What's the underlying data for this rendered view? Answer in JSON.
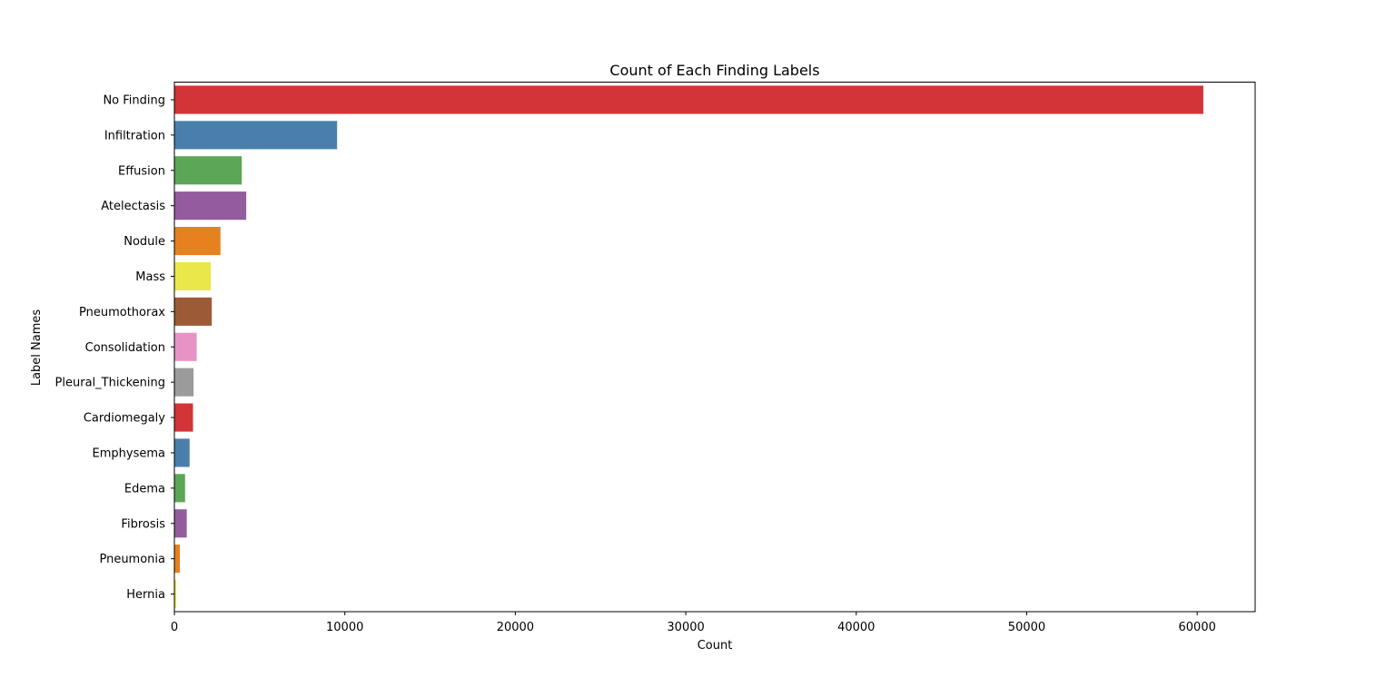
{
  "chart_data": {
    "type": "bar",
    "orientation": "horizontal",
    "title": "Count of Each Finding Labels",
    "xlabel": "Count",
    "ylabel": "Label Names",
    "xlim": [
      0,
      63400
    ],
    "xticks": [
      0,
      10000,
      20000,
      30000,
      40000,
      50000,
      60000
    ],
    "grid": false,
    "categories": [
      "No Finding",
      "Infiltration",
      "Effusion",
      "Atelectasis",
      "Nodule",
      "Mass",
      "Pneumothorax",
      "Consolidation",
      "Pleural_Thickening",
      "Cardiomegaly",
      "Emphysema",
      "Edema",
      "Fibrosis",
      "Pneumonia",
      "Hernia"
    ],
    "values": [
      60361,
      9547,
      3955,
      4215,
      2705,
      2139,
      2194,
      1310,
      1126,
      1093,
      892,
      628,
      727,
      322,
      110
    ],
    "colors": [
      "#d33437",
      "#4a7fab",
      "#5ba657",
      "#925c9e",
      "#e5811f",
      "#e8e84a",
      "#9c5b36",
      "#e893c5",
      "#9b9b9b",
      "#d33437",
      "#4a7fab",
      "#5ba657",
      "#925c9e",
      "#e5811f",
      "#e8e84a"
    ]
  }
}
